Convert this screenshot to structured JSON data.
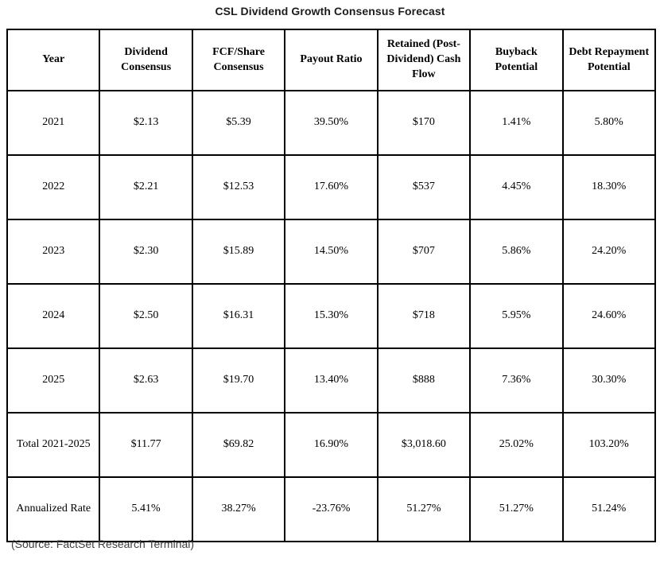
{
  "title": "CSL Dividend Growth Consensus Forecast",
  "chart_data": {
    "type": "table",
    "title": "CSL Dividend Growth Consensus Forecast",
    "columns": [
      "Year",
      "Dividend Consensus",
      "FCF/Share Consensus",
      "Payout Ratio",
      "Retained (Post-Dividend) Cash Flow",
      "Buyback Potential",
      "Debt Repayment Potential"
    ],
    "rows": [
      [
        "2021",
        "$2.13",
        "$5.39",
        "39.50%",
        "$170",
        "1.41%",
        "5.80%"
      ],
      [
        "2022",
        "$2.21",
        "$12.53",
        "17.60%",
        "$537",
        "4.45%",
        "18.30%"
      ],
      [
        "2023",
        "$2.30",
        "$15.89",
        "14.50%",
        "$707",
        "5.86%",
        "24.20%"
      ],
      [
        "2024",
        "$2.50",
        "$16.31",
        "15.30%",
        "$718",
        "5.95%",
        "24.60%"
      ],
      [
        "2025",
        "$2.63",
        "$19.70",
        "13.40%",
        "$888",
        "7.36%",
        "30.30%"
      ],
      [
        "Total 2021-2025",
        "$11.77",
        "$69.82",
        "16.90%",
        "$3,018.60",
        "25.02%",
        "103.20%"
      ],
      [
        "Annualized Rate",
        "5.41%",
        "38.27%",
        "-23.76%",
        "51.27%",
        "51.27%",
        "51.24%"
      ]
    ],
    "layout": {
      "grid": true,
      "border_color": "#000000",
      "background": "#ffffff"
    }
  },
  "footer": {
    "source": "(Source: FactSet Research Terminal)"
  }
}
